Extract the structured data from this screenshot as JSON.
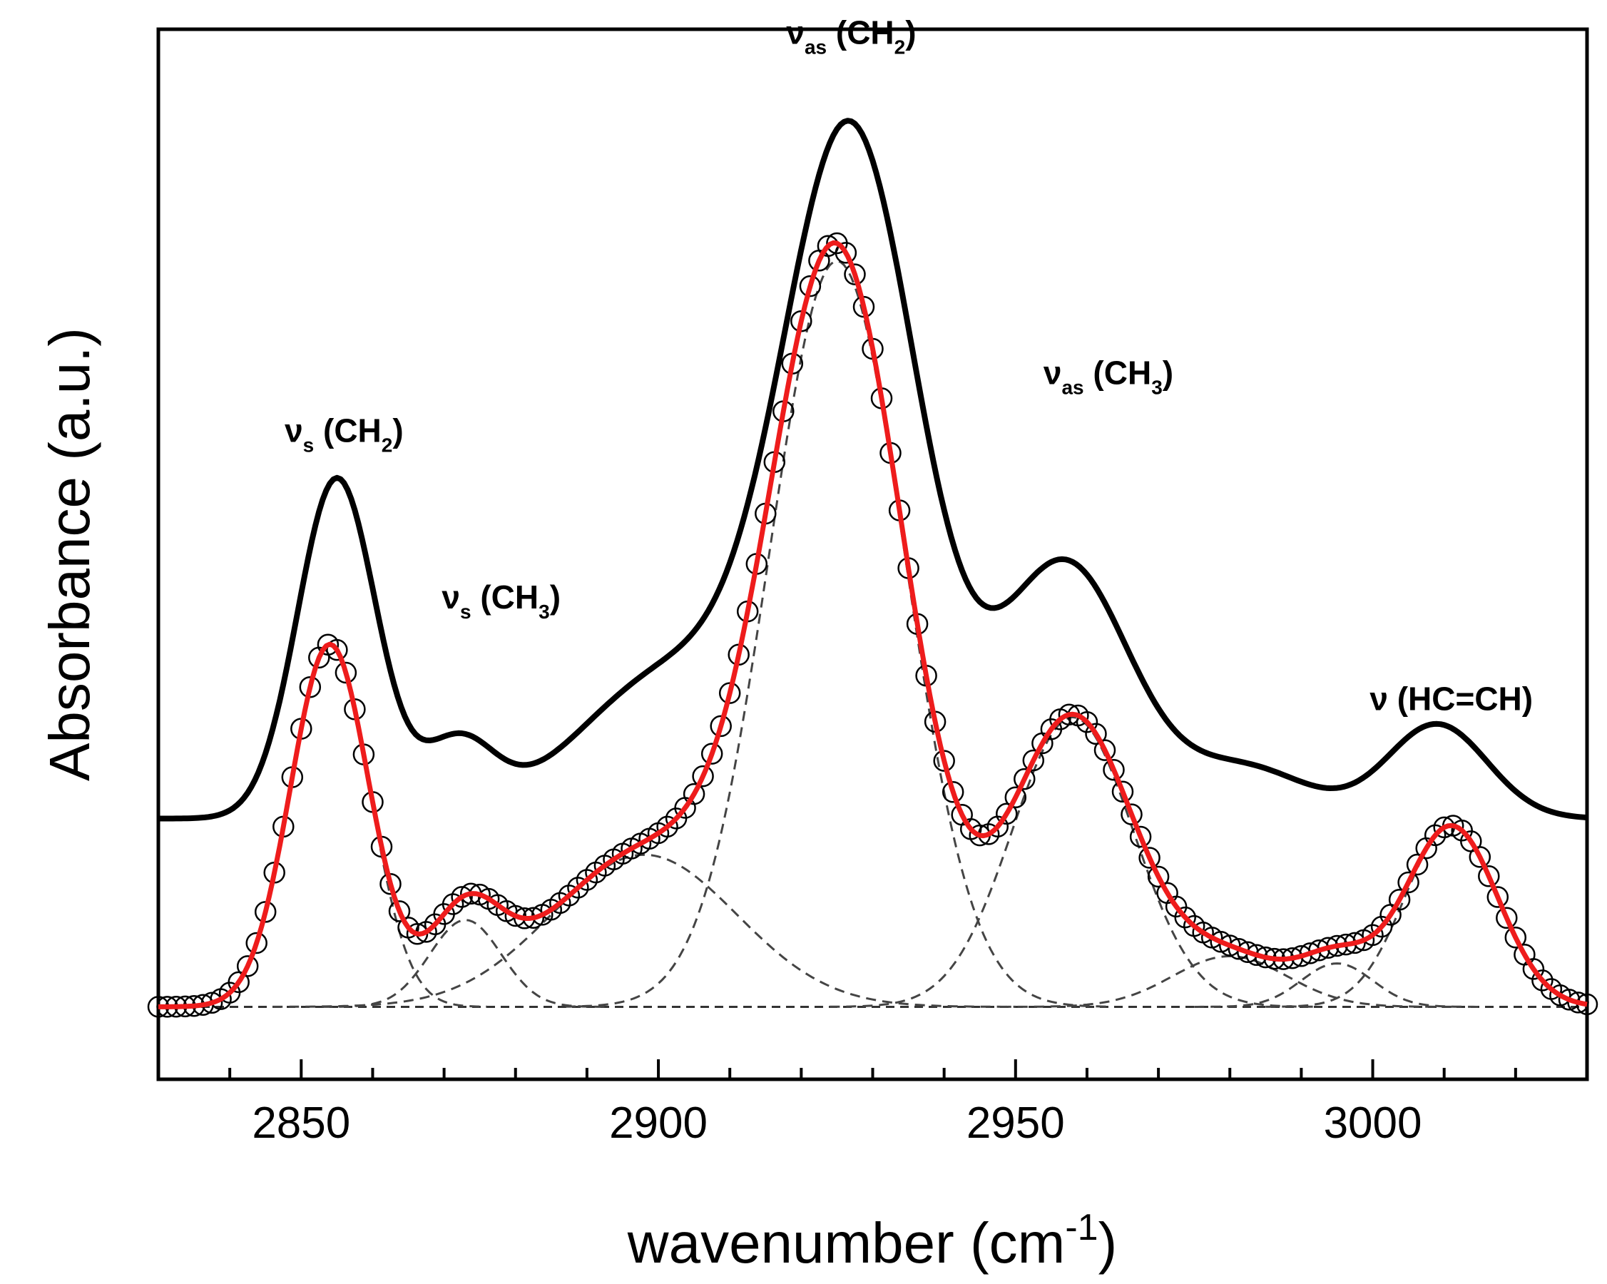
{
  "chart_data": {
    "type": "line",
    "xlabel": "wavenumber (cm",
    "xlabel_sup": "-1",
    "xlabel_end": ")",
    "ylabel": "Absorbance (a.u.)",
    "xlim": [
      2830,
      3030
    ],
    "ylim": [
      -0.1,
      1.35
    ],
    "x_ticks_major": [
      2850,
      2900,
      2950,
      3000
    ],
    "x_tick_labels": [
      "2850",
      "2900",
      "2950",
      "3000"
    ],
    "x_ticks_minor": [
      2840,
      2860,
      2870,
      2880,
      2890,
      2910,
      2920,
      2930,
      2940,
      2960,
      2970,
      2980,
      2990,
      3010,
      3020
    ],
    "series": [
      {
        "name": "measured spectrum (offset)",
        "style": "black solid line",
        "offset": 0.26,
        "components": [
          {
            "center": 2855,
            "amplitude": 0.47,
            "sigma": 5.5
          },
          {
            "center": 2872,
            "amplitude": 0.1,
            "sigma": 5
          },
          {
            "center": 2902,
            "amplitude": 0.2,
            "sigma": 13
          },
          {
            "center": 2927,
            "amplitude": 0.93,
            "sigma": 9.5
          },
          {
            "center": 2957,
            "amplitude": 0.35,
            "sigma": 9
          },
          {
            "center": 2982,
            "amplitude": 0.07,
            "sigma": 9
          },
          {
            "center": 3009,
            "amplitude": 0.13,
            "sigma": 7
          }
        ]
      },
      {
        "name": "experimental data",
        "style": "open circles",
        "offset": 0.0,
        "sampling_step": 1.25
      },
      {
        "name": "cumulative fit",
        "style": "red solid line",
        "offset": 0.0
      },
      {
        "name": "fitted components",
        "style": "grey dashed lines",
        "components": [
          {
            "center": 2854,
            "amplitude": 0.5,
            "sigma": 5.5
          },
          {
            "center": 2873,
            "amplitude": 0.12,
            "sigma": 5
          },
          {
            "center": 2898,
            "amplitude": 0.21,
            "sigma": 13
          },
          {
            "center": 2925,
            "amplitude": 1.03,
            "sigma": 9.5
          },
          {
            "center": 2958,
            "amplitude": 0.4,
            "sigma": 8.5
          },
          {
            "center": 2980,
            "amplitude": 0.07,
            "sigma": 8
          },
          {
            "center": 2995,
            "amplitude": 0.06,
            "sigma": 5
          },
          {
            "center": 3011,
            "amplitude": 0.25,
            "sigma": 6.5
          }
        ]
      },
      {
        "name": "baseline",
        "style": "dashed line",
        "value": 0.0
      }
    ],
    "annotations": [
      {
        "id": "vs-ch2",
        "symbol": "ν",
        "sub": "s",
        "label": " (CH",
        "label_sub": "2",
        "label_end": ")",
        "x": 2856,
        "y": 0.78
      },
      {
        "id": "vs-ch3",
        "symbol": "ν",
        "sub": "s",
        "label": " (CH",
        "label_sub": "3",
        "label_end": ")",
        "x": 2878,
        "y": 0.55
      },
      {
        "id": "vas-ch2",
        "symbol": "ν",
        "sub": "as",
        "label": " (CH",
        "label_sub": "2",
        "label_end": ")",
        "x": 2927,
        "y": 1.33
      },
      {
        "id": "vas-ch3",
        "symbol": "ν",
        "sub": "as",
        "label": " (CH",
        "label_sub": "3",
        "label_end": ")",
        "x": 2963,
        "y": 0.86
      },
      {
        "id": "v-hc-ch",
        "symbol": "ν",
        "sub": "",
        "label": " (HC=CH)",
        "label_sub": "",
        "label_end": "",
        "x": 3011,
        "y": 0.41
      }
    ]
  }
}
